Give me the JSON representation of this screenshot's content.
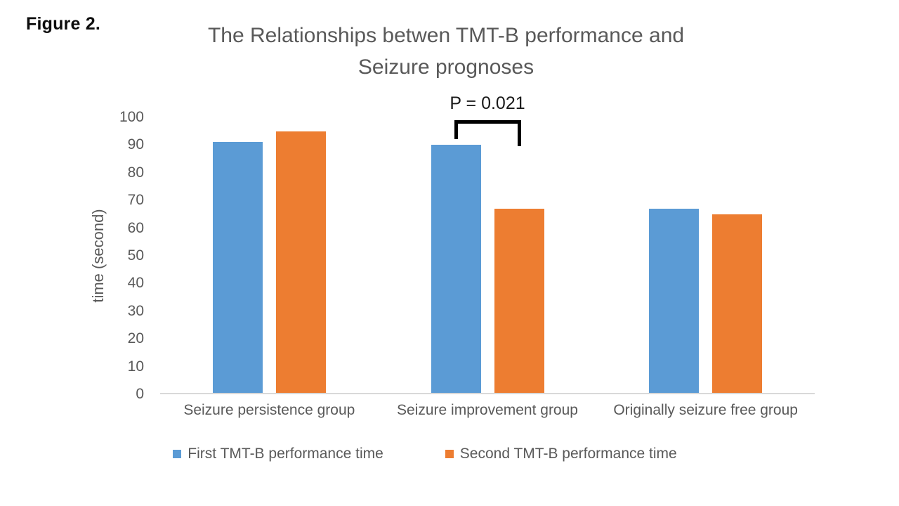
{
  "figure_label": "Figure 2.",
  "chart_data": {
    "type": "bar",
    "title_line1": "The Relationships betwen TMT-B performance and",
    "title_line2": "Seizure prognoses",
    "categories": [
      "Seizure persistence group",
      "Seizure improvement group",
      "Originally seizure free group"
    ],
    "series": [
      {
        "name": "First TMT-B performance time",
        "color": "#5B9BD5",
        "values": [
          91,
          90,
          67
        ]
      },
      {
        "name": "Second TMT-B performance time",
        "color": "#ED7D31",
        "values": [
          95,
          67,
          65
        ]
      }
    ],
    "ylabel": "time (second)",
    "ylim": [
      0,
      100
    ],
    "yticks": [
      0,
      10,
      20,
      30,
      40,
      50,
      60,
      70,
      80,
      90,
      100
    ],
    "grid": false,
    "legend_position": "bottom",
    "annotation": {
      "text": "P = 0.021",
      "category_index": 1,
      "between_series": [
        0,
        1
      ]
    }
  }
}
